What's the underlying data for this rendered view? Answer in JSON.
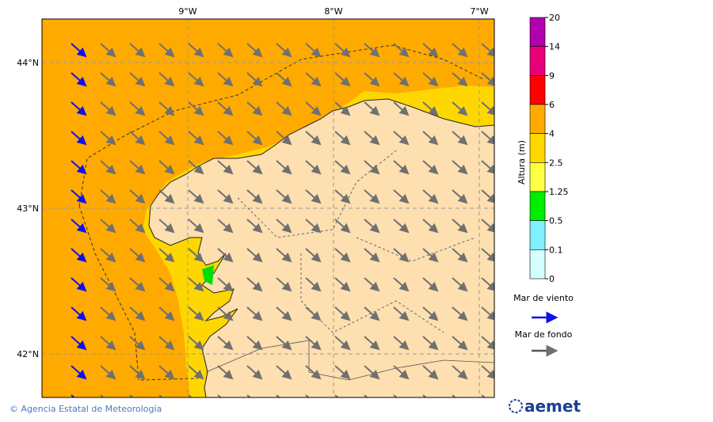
{
  "map": {
    "lon_labels": [
      "9°W",
      "8°W",
      "7°W"
    ],
    "lat_labels": [
      "44°N",
      "43°N",
      "42°N"
    ],
    "colorbar": {
      "title": "Altura (m)",
      "ticks": [
        "20",
        "14",
        "9",
        "6",
        "4",
        "2.5",
        "1.25",
        "0.5",
        "0.1",
        "0"
      ],
      "colors": [
        "#b000b0",
        "#e8007a",
        "#ff0000",
        "#ffaa00",
        "#ffd700",
        "#ffff44",
        "#00ee00",
        "#80f0ff",
        "#d4ffff"
      ]
    },
    "legend": {
      "wind_sea": "Mar de viento",
      "swell": "Mar de fondo"
    },
    "footer": {
      "credit": "© Agencia Estatal de Meteorología",
      "logo": "aemet"
    }
  }
}
